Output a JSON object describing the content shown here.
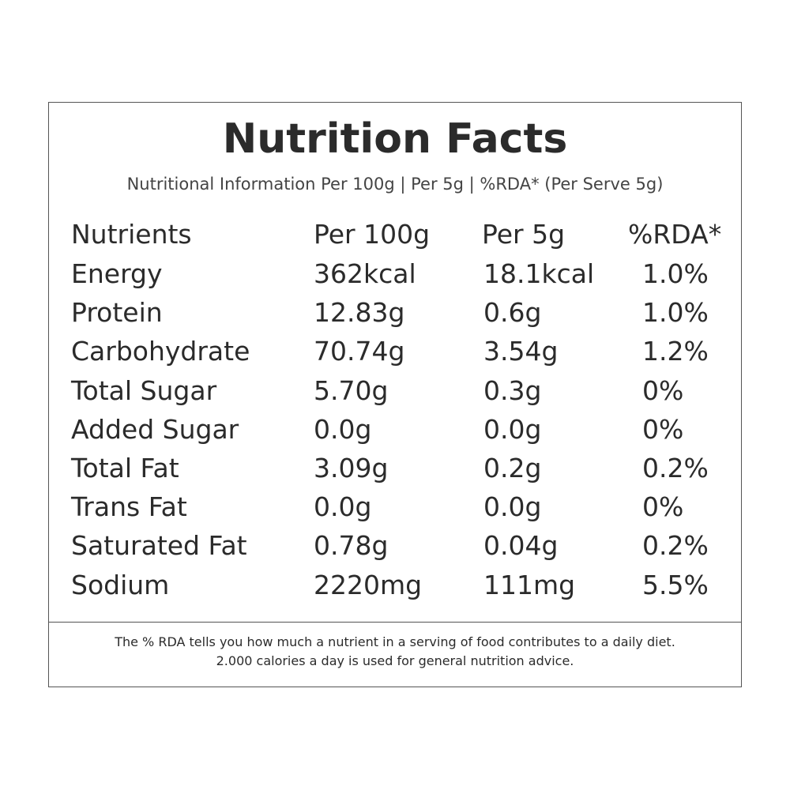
{
  "header": {
    "title": "Nutrition Facts",
    "subtitle": "Nutritional Information Per 100g | Per 5g | %RDA* (Per Serve 5g)"
  },
  "table": {
    "columns": [
      "Nutrients",
      "Per 100g",
      "Per 5g",
      "%RDA*"
    ],
    "rows": [
      [
        "Energy",
        "362kcal",
        "18.1kcal",
        "1.0%"
      ],
      [
        "Protein",
        "12.83g",
        "0.6g",
        "1.0%"
      ],
      [
        "Carbohydrate",
        "70.74g",
        "3.54g",
        "1.2%"
      ],
      [
        "Total Sugar",
        "5.70g",
        "0.3g",
        "0%"
      ],
      [
        "Added Sugar",
        "0.0g",
        "0.0g",
        "0%"
      ],
      [
        "Total Fat",
        "3.09g",
        "0.2g",
        "0.2%"
      ],
      [
        "Trans Fat",
        "0.0g",
        "0.0g",
        "0%"
      ],
      [
        "Saturated Fat",
        "0.78g",
        "0.04g",
        "0.2%"
      ],
      [
        "Sodium",
        "2220mg",
        "111mg",
        "5.5%"
      ]
    ]
  },
  "footnote": [
    "The % RDA tells you how much a nutrient in a serving of food contributes to a daily diet.",
    "2.000 calories a day is used for general nutrition advice."
  ]
}
